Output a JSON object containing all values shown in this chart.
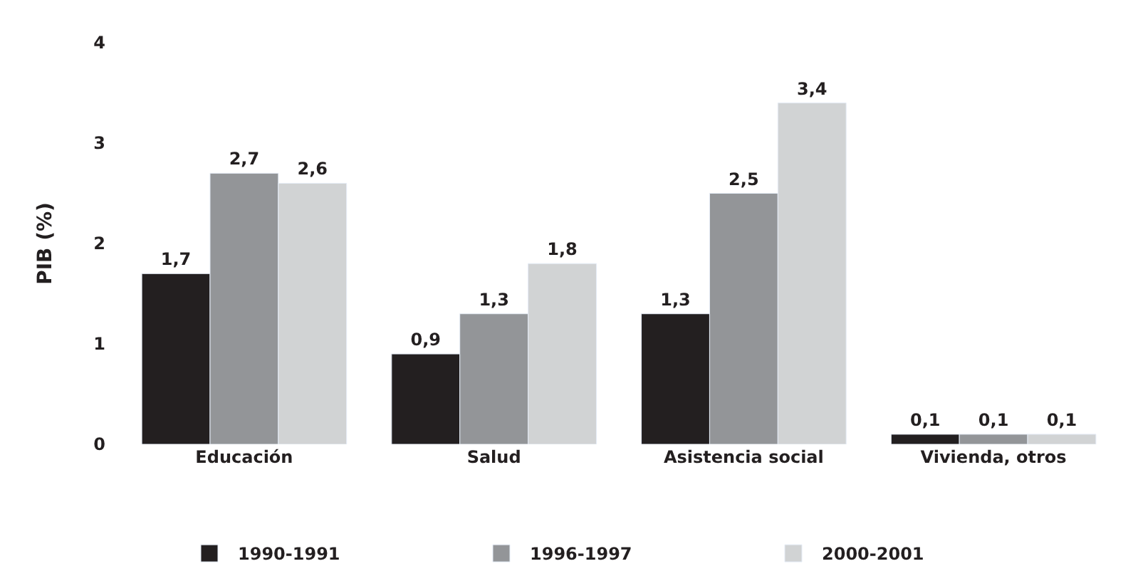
{
  "chart_data": {
    "type": "bar",
    "ylabel": "PIB (%)",
    "categories": [
      "Educación",
      "Salud",
      "Asistencia social",
      "Vivienda, otros"
    ],
    "series": [
      {
        "name": "1990-1991",
        "color": "#231f20",
        "values": [
          1.7,
          0.9,
          1.3,
          0.1
        ],
        "value_labels": [
          "1,7",
          "0,9",
          "1,3",
          "0,1"
        ]
      },
      {
        "name": "1996-1997",
        "color": "#939598",
        "values": [
          2.7,
          1.3,
          2.5,
          0.1
        ],
        "value_labels": [
          "2,7",
          "1,3",
          "2,5",
          "0,1"
        ]
      },
      {
        "name": "2000-2001",
        "color": "#d1d3d4",
        "values": [
          2.6,
          1.8,
          3.4,
          0.1
        ],
        "value_labels": [
          "2,6",
          "1,8",
          "3,4",
          "0,1"
        ]
      }
    ],
    "ylim": [
      0,
      4
    ],
    "yticks": [
      0,
      1,
      2,
      3,
      4
    ],
    "legend": "bottom"
  }
}
